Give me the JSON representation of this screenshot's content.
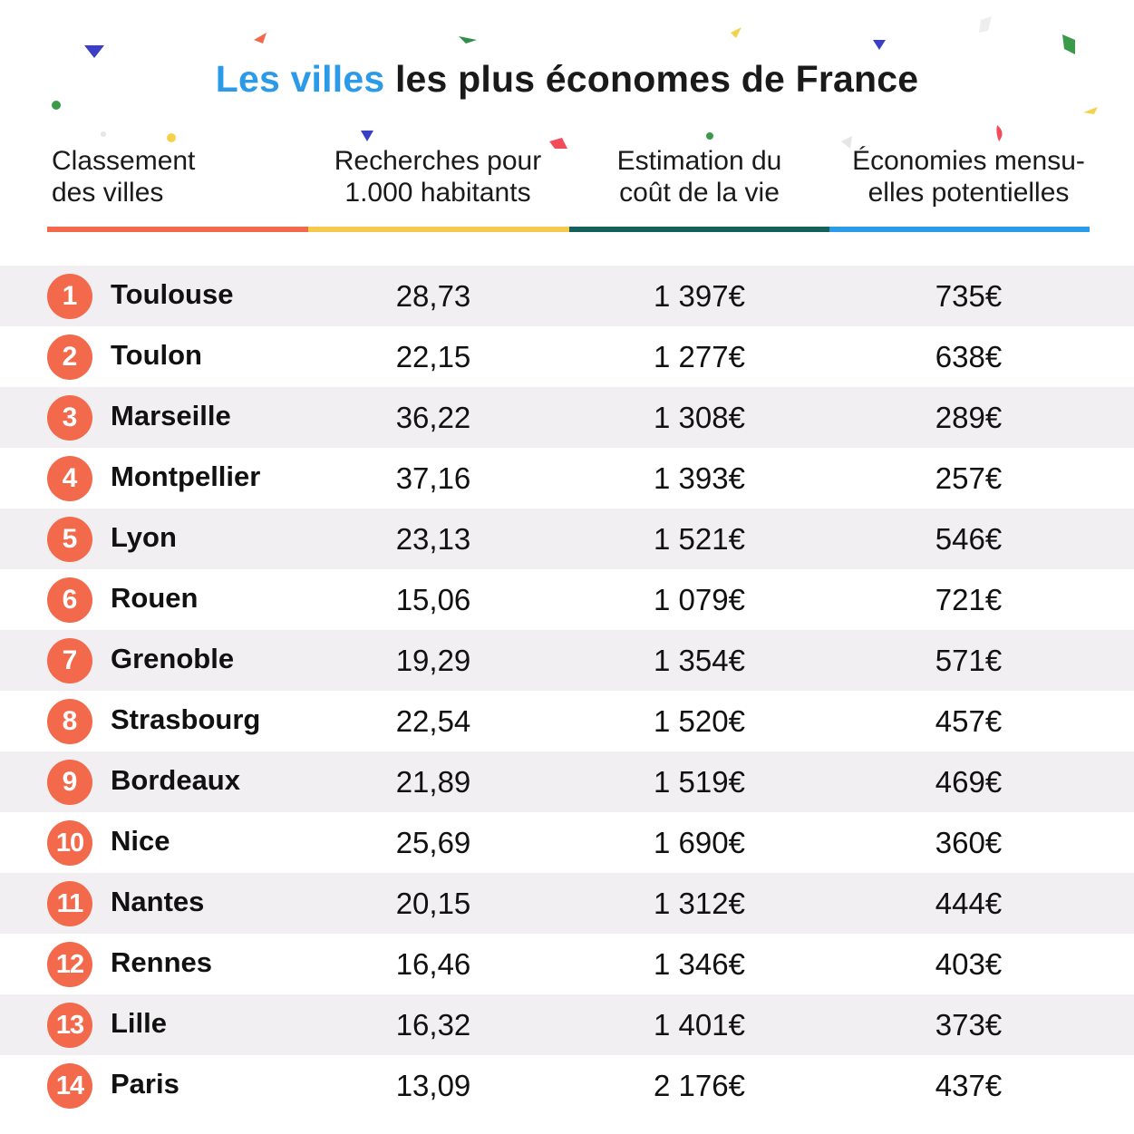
{
  "title": {
    "accent": "Les villes",
    "rest": "les plus économes de France"
  },
  "headers": {
    "rank": [
      "Classement",
      "des villes"
    ],
    "searches": [
      "Recherches pour",
      "1.000 habitants"
    ],
    "cost": [
      "Estimation du",
      "coût de la vie"
    ],
    "savings": [
      "Économies mensu-",
      "elles potentielles"
    ]
  },
  "colors": {
    "accent": "#2b9ae8",
    "badge": "#f26a4b",
    "underline_rank": "#f26a4b",
    "underline_searches": "#f5c94c",
    "underline_cost": "#16605b",
    "underline_savings": "#2b9ae8",
    "row_shade": "#f2eff2"
  },
  "chart_data": {
    "type": "table",
    "columns": [
      "Classement des villes",
      "Recherches pour 1.000 habitants",
      "Estimation du coût de la vie",
      "Économies mensuelles potentielles"
    ],
    "rows": [
      {
        "rank": "1",
        "city": "Toulouse",
        "searches": "28,73",
        "cost": "1 397€",
        "savings": "735€"
      },
      {
        "rank": "2",
        "city": "Toulon",
        "searches": "22,15",
        "cost": "1 277€",
        "savings": "638€"
      },
      {
        "rank": "3",
        "city": "Marseille",
        "searches": "36,22",
        "cost": "1 308€",
        "savings": "289€"
      },
      {
        "rank": "4",
        "city": "Montpellier",
        "searches": "37,16",
        "cost": "1 393€",
        "savings": "257€"
      },
      {
        "rank": "5",
        "city": "Lyon",
        "searches": "23,13",
        "cost": "1 521€",
        "savings": "546€"
      },
      {
        "rank": "6",
        "city": "Rouen",
        "searches": "15,06",
        "cost": "1 079€",
        "savings": "721€"
      },
      {
        "rank": "7",
        "city": "Grenoble",
        "searches": "19,29",
        "cost": "1 354€",
        "savings": "571€"
      },
      {
        "rank": "8",
        "city": "Strasbourg",
        "searches": "22,54",
        "cost": "1 520€",
        "savings": "457€"
      },
      {
        "rank": "9",
        "city": "Bordeaux",
        "searches": "21,89",
        "cost": "1 519€",
        "savings": "469€"
      },
      {
        "rank": "10",
        "city": "Nice",
        "searches": "25,69",
        "cost": "1 690€",
        "savings": "360€"
      },
      {
        "rank": "11",
        "city": "Nantes",
        "searches": "20,15",
        "cost": "1 312€",
        "savings": "444€"
      },
      {
        "rank": "12",
        "city": "Rennes",
        "searches": "16,46",
        "cost": "1 346€",
        "savings": "403€"
      },
      {
        "rank": "13",
        "city": "Lille",
        "searches": "16,32",
        "cost": "1 401€",
        "savings": "373€"
      },
      {
        "rank": "14",
        "city": "Paris",
        "searches": "13,09",
        "cost": "2 176€",
        "savings": "437€"
      }
    ]
  }
}
